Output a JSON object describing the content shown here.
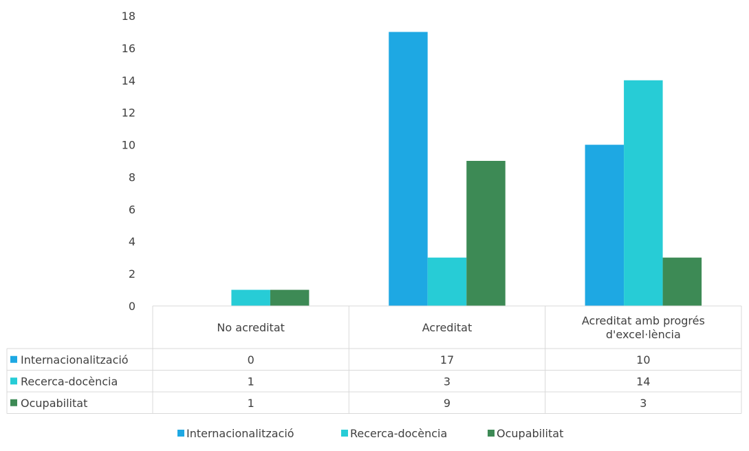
{
  "chart_data": {
    "type": "bar",
    "title": "",
    "xlabel": "",
    "ylabel": "",
    "categories": [
      "No acreditat",
      "Acreditat",
      "Acreditat amb progrés d'excel·lència"
    ],
    "category_lines": [
      [
        "No acreditat"
      ],
      [
        "Acreditat"
      ],
      [
        "Acreditat amb progrés",
        "d'excel·lència"
      ]
    ],
    "series": [
      {
        "name": "Internacionalització",
        "values": [
          0,
          17,
          10
        ],
        "color": "#1EA8E3"
      },
      {
        "name": "Recerca-docència",
        "values": [
          1,
          3,
          14
        ],
        "color": "#27CCD6"
      },
      {
        "name": "Ocupabilitat",
        "values": [
          1,
          9,
          3
        ],
        "color": "#3D8A55"
      }
    ],
    "ylim": [
      0,
      18
    ],
    "yticks": [
      0,
      2,
      4,
      6,
      8,
      10,
      12,
      14,
      16,
      18
    ],
    "grid": false,
    "data_table": true,
    "legend_position": "bottom"
  }
}
